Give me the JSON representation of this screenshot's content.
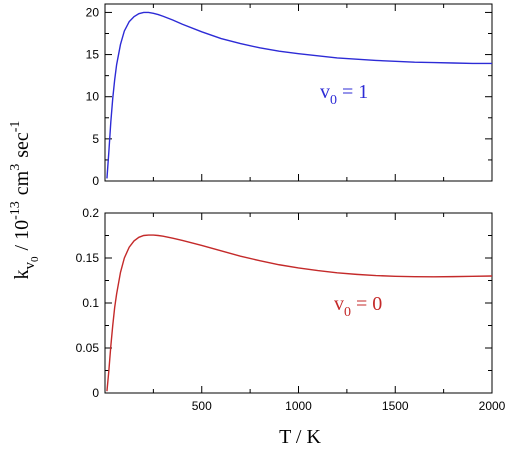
{
  "chart_data": [
    {
      "type": "line",
      "panel": "top",
      "color": "#2d2bd6",
      "xlim": [
        0,
        2000
      ],
      "ylim": [
        0,
        21
      ],
      "yticks": [
        0,
        5,
        10,
        15,
        20
      ],
      "ytick_labels": [
        "0",
        "5",
        "10",
        "15",
        "20"
      ],
      "xticks": [
        500,
        1000,
        1500,
        2000
      ],
      "show_xtick_labels": false,
      "series": [
        {
          "label_main": "v",
          "label_sub": "0",
          "label_rest": " = 1",
          "x": [
            10,
            20,
            30,
            40,
            50,
            60,
            80,
            100,
            125,
            150,
            175,
            200,
            225,
            250,
            275,
            300,
            350,
            400,
            500,
            600,
            700,
            800,
            900,
            1000,
            1100,
            1200,
            1300,
            1400,
            1500,
            1600,
            1700,
            1800,
            1900,
            2000
          ],
          "y": [
            0.3,
            3.5,
            7.0,
            9.8,
            12.0,
            13.8,
            16.2,
            17.8,
            18.9,
            19.5,
            19.85,
            20.0,
            20.0,
            19.9,
            19.75,
            19.55,
            19.1,
            18.6,
            17.7,
            16.9,
            16.3,
            15.8,
            15.4,
            15.1,
            14.85,
            14.6,
            14.45,
            14.3,
            14.2,
            14.1,
            14.05,
            14.0,
            13.95,
            13.95
          ]
        }
      ],
      "annotation_color": "#2d2bd6"
    },
    {
      "type": "line",
      "panel": "bottom",
      "color": "#c42a2a",
      "xlim": [
        0,
        2000
      ],
      "ylim": [
        0,
        0.2
      ],
      "yticks": [
        0,
        0.05,
        0.1,
        0.15,
        0.2
      ],
      "ytick_labels": [
        "0",
        "0.05",
        "0.1",
        "0.15",
        "0.2"
      ],
      "xticks": [
        500,
        1000,
        1500,
        2000
      ],
      "xtick_labels": [
        "500",
        "1000",
        "1500",
        "2000"
      ],
      "show_xtick_labels": true,
      "series": [
        {
          "label_main": "v",
          "label_sub": "0",
          "label_rest": " = 0",
          "x": [
            10,
            20,
            30,
            40,
            50,
            60,
            80,
            100,
            125,
            150,
            175,
            200,
            225,
            250,
            275,
            300,
            350,
            400,
            500,
            600,
            700,
            800,
            900,
            1000,
            1100,
            1200,
            1300,
            1400,
            1500,
            1600,
            1700,
            1800,
            1900,
            2000
          ],
          "y": [
            0.002,
            0.025,
            0.052,
            0.075,
            0.095,
            0.11,
            0.134,
            0.15,
            0.162,
            0.169,
            0.173,
            0.175,
            0.1755,
            0.1755,
            0.175,
            0.1743,
            0.172,
            0.1695,
            0.164,
            0.158,
            0.152,
            0.147,
            0.1425,
            0.139,
            0.136,
            0.1335,
            0.1318,
            0.1305,
            0.1297,
            0.1292,
            0.1291,
            0.1293,
            0.1296,
            0.13
          ]
        }
      ],
      "annotation_color": "#c42a2a"
    }
  ],
  "axes": {
    "xlabel": "T / K",
    "ylabel_k": "k",
    "ylabel_sub_v": "v",
    "ylabel_sub_0": "0",
    "ylabel_unit_a": "/ 10",
    "ylabel_exp_a": "-13",
    "ylabel_unit_b": "cm",
    "ylabel_exp_b": "3",
    "ylabel_unit_c": "sec",
    "ylabel_exp_c": "-1"
  }
}
